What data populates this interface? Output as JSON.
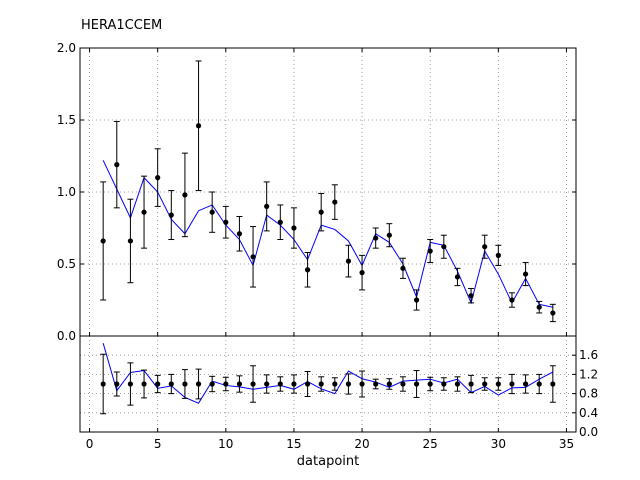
{
  "chart_data": {
    "type": "line",
    "title": "HERA1CCEM",
    "xlabel": "datapoint",
    "grid": true,
    "x": [
      1,
      2,
      3,
      4,
      5,
      6,
      7,
      8,
      9,
      10,
      11,
      12,
      13,
      14,
      15,
      16,
      17,
      18,
      19,
      20,
      21,
      22,
      23,
      24,
      25,
      26,
      27,
      28,
      29,
      30,
      31,
      32,
      33,
      34
    ],
    "main": {
      "ylim": [
        0.0,
        2.0
      ],
      "yticks": [
        "0.0",
        "0.5",
        "1.0",
        "1.5",
        "2.0"
      ],
      "data": {
        "y": [
          0.66,
          1.19,
          0.66,
          0.86,
          1.1,
          0.84,
          0.98,
          1.46,
          0.86,
          0.79,
          0.71,
          0.55,
          0.9,
          0.79,
          0.75,
          0.46,
          0.86,
          0.93,
          0.52,
          0.44,
          0.68,
          0.7,
          0.47,
          0.25,
          0.59,
          0.62,
          0.41,
          0.28,
          0.62,
          0.56,
          0.25,
          0.43,
          0.2,
          0.16
        ],
        "err": [
          0.41,
          0.3,
          0.29,
          0.25,
          0.2,
          0.17,
          0.29,
          0.45,
          0.14,
          0.11,
          0.12,
          0.21,
          0.17,
          0.12,
          0.14,
          0.12,
          0.13,
          0.12,
          0.11,
          0.12,
          0.07,
          0.08,
          0.07,
          0.07,
          0.08,
          0.08,
          0.06,
          0.05,
          0.08,
          0.07,
          0.05,
          0.08,
          0.04,
          0.06
        ]
      },
      "theory": [
        1.22,
        1.02,
        0.82,
        1.1,
        1.0,
        0.81,
        0.71,
        0.87,
        0.91,
        0.77,
        0.67,
        0.49,
        0.84,
        0.77,
        0.67,
        0.53,
        0.77,
        0.74,
        0.66,
        0.49,
        0.71,
        0.65,
        0.5,
        0.27,
        0.65,
        0.63,
        0.45,
        0.23,
        0.59,
        0.43,
        0.23,
        0.4,
        0.22,
        0.2
      ]
    },
    "ratio": {
      "ylim": [
        0.0,
        2.0
      ],
      "yticks": [
        "0.0",
        "0.4",
        "0.8",
        "1.2",
        "1.6"
      ],
      "data_y": 1.0,
      "err": [
        0.62,
        0.25,
        0.44,
        0.29,
        0.18,
        0.2,
        0.3,
        0.31,
        0.16,
        0.14,
        0.17,
        0.38,
        0.19,
        0.15,
        0.19,
        0.26,
        0.15,
        0.13,
        0.21,
        0.27,
        0.1,
        0.11,
        0.15,
        0.28,
        0.14,
        0.13,
        0.15,
        0.18,
        0.13,
        0.13,
        0.2,
        0.19,
        0.2,
        0.38
      ],
      "theory": [
        1.85,
        0.86,
        1.24,
        1.28,
        0.91,
        0.96,
        0.72,
        0.6,
        1.06,
        0.97,
        0.94,
        0.89,
        0.93,
        0.97,
        0.89,
        1.05,
        0.9,
        0.8,
        1.27,
        1.11,
        1.04,
        0.93,
        1.06,
        1.08,
        1.1,
        1.02,
        1.1,
        0.82,
        0.95,
        0.77,
        0.92,
        0.93,
        1.1,
        1.25
      ]
    },
    "xlim": [
      -0.7,
      35.7
    ],
    "xticks": [
      "0",
      "5",
      "10",
      "15",
      "20",
      "25",
      "30",
      "35"
    ],
    "colors": {
      "theory": "#0000ff",
      "data": "#000000",
      "grid": "#888888"
    }
  }
}
